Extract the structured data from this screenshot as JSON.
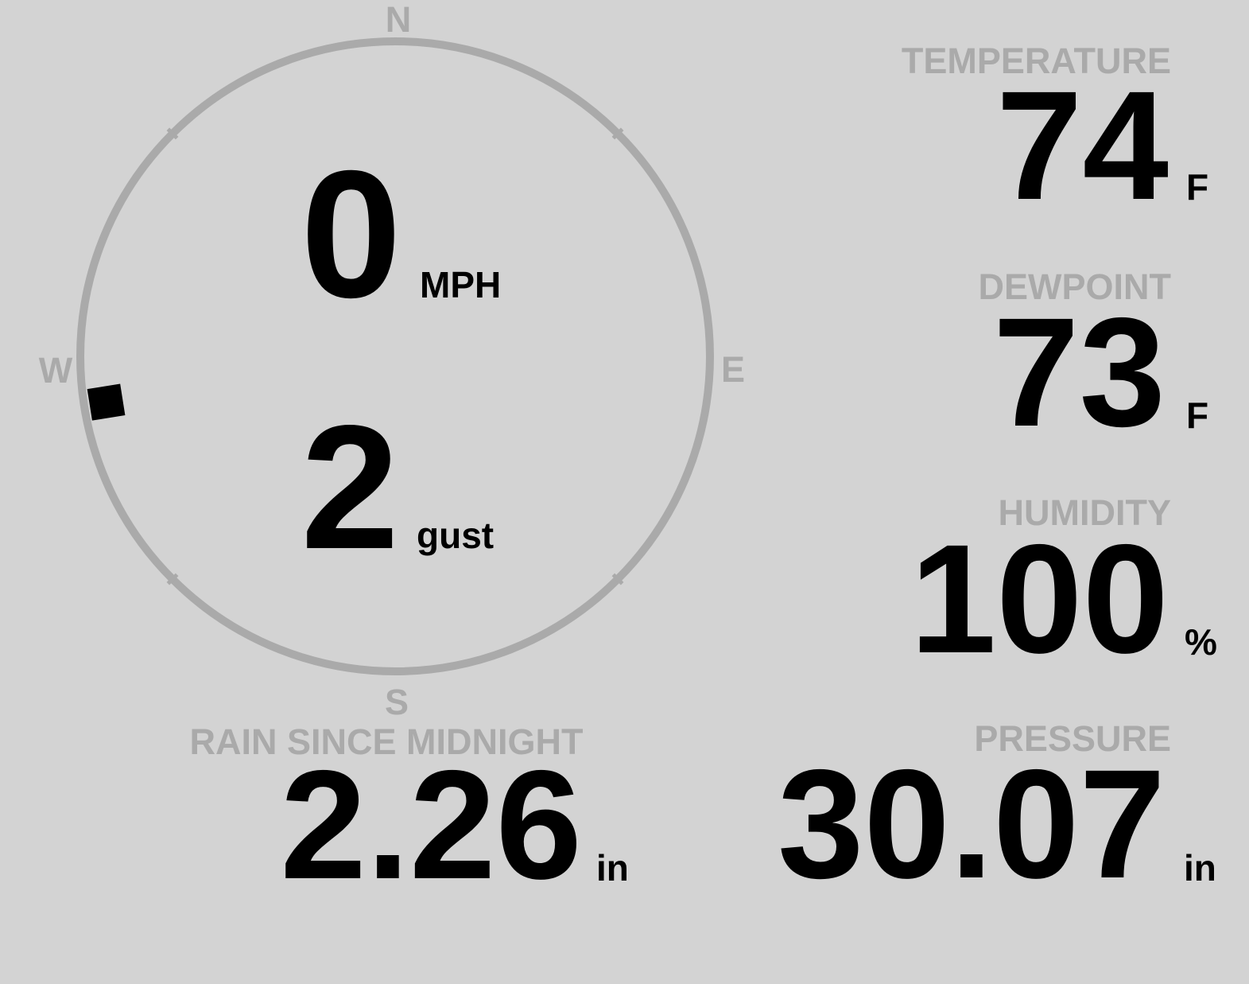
{
  "colors": {
    "background": "#d3d3d3",
    "label": "#aaaaaa",
    "value": "#000000"
  },
  "wind": {
    "compass": {
      "north": "N",
      "east": "E",
      "south": "S",
      "west": "W"
    },
    "direction_degrees": 261,
    "speed": "0",
    "speed_unit": "MPH",
    "gust": "2",
    "gust_unit": "gust"
  },
  "temperature": {
    "label": "TEMPERATURE",
    "value": "74",
    "unit": "F"
  },
  "dewpoint": {
    "label": "DEWPOINT",
    "value": "73",
    "unit": "F"
  },
  "humidity": {
    "label": "HUMIDITY",
    "value": "100",
    "unit": "%"
  },
  "rain": {
    "label": "RAIN SINCE MIDNIGHT",
    "value": "2.26",
    "unit": "in"
  },
  "pressure": {
    "label": "PRESSURE",
    "value": "30.07",
    "unit": "in"
  }
}
